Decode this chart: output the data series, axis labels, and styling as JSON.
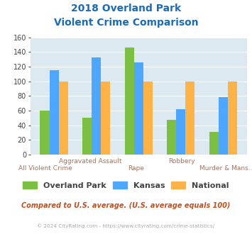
{
  "title_line1": "2018 Overland Park",
  "title_line2": "Violent Crime Comparison",
  "op_values": [
    60,
    50,
    146,
    47,
    31
  ],
  "kansas_values": [
    115,
    133,
    126,
    62,
    78
  ],
  "national_values": [
    100,
    100,
    100,
    100,
    100
  ],
  "op_color": "#7bc043",
  "kansas_color": "#4da6ff",
  "national_color": "#ffb347",
  "ylim": [
    0,
    160
  ],
  "yticks": [
    0,
    20,
    40,
    60,
    80,
    100,
    120,
    140,
    160
  ],
  "plot_bg": "#dce9f0",
  "title_color": "#1a6db5",
  "axis_label_color": "#b07050",
  "legend_label_color": "#444444",
  "footer_text": "Compared to U.S. average. (U.S. average equals 100)",
  "footer_color": "#c05020",
  "copyright_text": "© 2024 CityRating.com - https://www.cityrating.com/crime-statistics/",
  "copyright_color": "#aaaaaa",
  "bar_width": 0.22
}
